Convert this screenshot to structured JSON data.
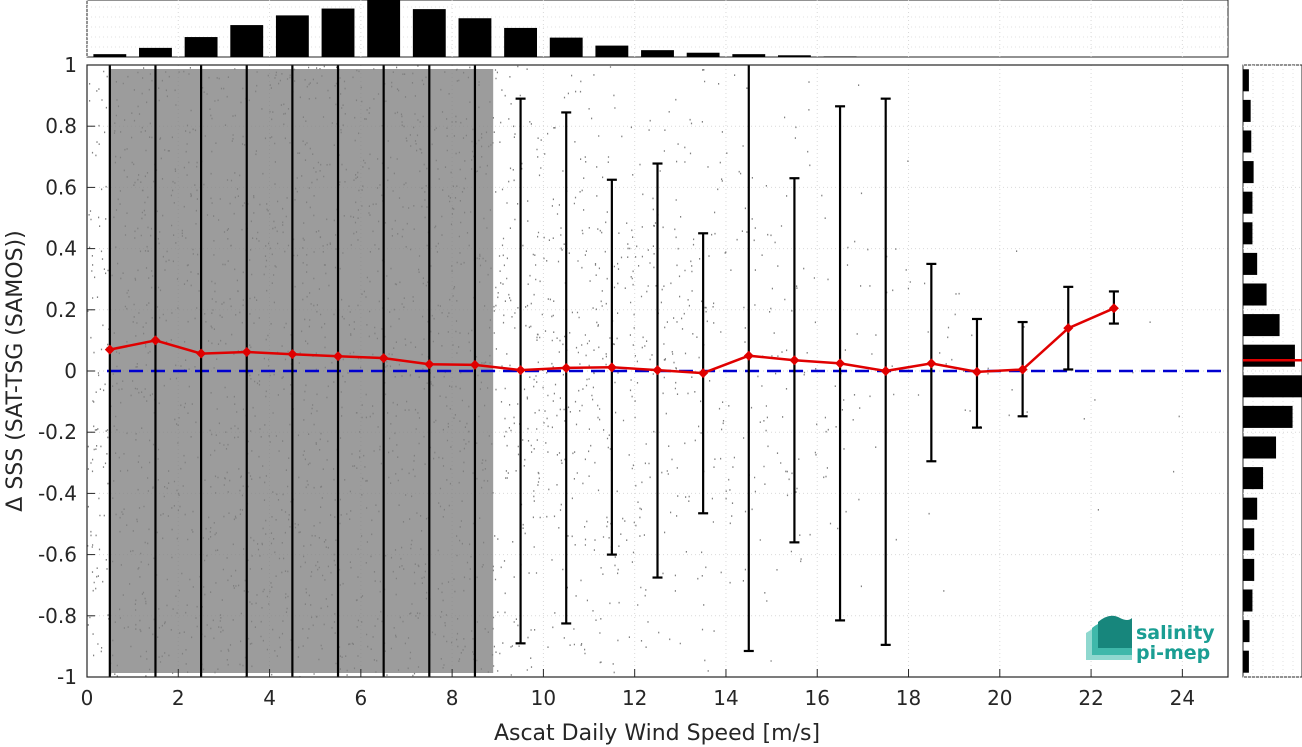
{
  "chart_data": {
    "type": "scatter",
    "xlabel": "Ascat Daily Wind Speed [m/s]",
    "ylabel": "Δ SSS (SAT-TSG (SAMOS))",
    "xlim": [
      0,
      25
    ],
    "ylim": [
      -1,
      1
    ],
    "xticks": [
      0,
      2,
      4,
      6,
      8,
      10,
      12,
      14,
      16,
      18,
      20,
      22,
      24
    ],
    "yticks": [
      -1,
      -0.8,
      -0.6,
      -0.4,
      -0.2,
      0,
      0.2,
      0.4,
      0.6,
      0.8,
      1
    ],
    "xtick_labels": [
      "0",
      "2",
      "4",
      "6",
      "8",
      "10",
      "12",
      "14",
      "16",
      "18",
      "20",
      "22",
      "24"
    ],
    "ytick_labels": [
      "-1",
      "-0.8",
      "-0.6",
      "-0.4",
      "-0.2",
      "0",
      "0.2",
      "0.4",
      "0.6",
      "0.8",
      "1"
    ],
    "grid": true,
    "reference_line": 0,
    "bin_means": {
      "x": [
        0.5,
        1.5,
        2.5,
        3.5,
        4.5,
        5.5,
        6.5,
        7.5,
        8.5,
        9.5,
        10.5,
        11.5,
        12.5,
        13.5,
        14.5,
        15.5,
        16.5,
        17.5,
        18.5,
        19.5,
        20.5,
        21.5,
        22.5
      ],
      "y": [
        0.07,
        0.1,
        0.057,
        0.062,
        0.055,
        0.048,
        0.042,
        0.022,
        0.02,
        0.003,
        0.01,
        0.012,
        0.003,
        -0.007,
        0.05,
        0.035,
        0.025,
        0.0,
        0.025,
        -0.003,
        0.005,
        0.14,
        0.205
      ]
    },
    "error_bars": {
      "upper": [
        1.05,
        1.05,
        1.05,
        1.05,
        1.05,
        1.05,
        1.05,
        1.05,
        1.05,
        0.89,
        0.845,
        0.625,
        0.678,
        0.45,
        1.05,
        0.63,
        0.865,
        0.89,
        0.35,
        0.17,
        0.16,
        0.275,
        0.26
      ],
      "lower": [
        -1.05,
        -1.05,
        -1.05,
        -1.05,
        -1.05,
        -1.05,
        -1.05,
        -1.05,
        -1.05,
        -0.89,
        -0.825,
        -0.6,
        -0.675,
        -0.465,
        -0.915,
        -0.56,
        -0.815,
        -0.895,
        -0.295,
        -0.185,
        -0.148,
        0.005,
        0.155
      ]
    },
    "x_histogram": {
      "bins": [
        0.5,
        1.5,
        2.5,
        3.5,
        4.5,
        5.5,
        6.5,
        7.5,
        8.5,
        9.5,
        10.5,
        11.5,
        12.5,
        13.5,
        14.5,
        15.5,
        16.5
      ],
      "heights": [
        0.05,
        0.16,
        0.35,
        0.56,
        0.73,
        0.85,
        1.0,
        0.84,
        0.68,
        0.51,
        0.34,
        0.2,
        0.12,
        0.075,
        0.05,
        0.03,
        0.01
      ]
    },
    "y_histogram": {
      "bins": [
        -0.95,
        -0.85,
        -0.75,
        -0.65,
        -0.55,
        -0.45,
        -0.35,
        -0.25,
        -0.15,
        -0.05,
        0.05,
        0.15,
        0.25,
        0.35,
        0.45,
        0.55,
        0.65,
        0.75,
        0.85,
        0.95
      ],
      "widths": [
        0.1,
        0.11,
        0.16,
        0.19,
        0.19,
        0.24,
        0.34,
        0.56,
        0.84,
        1.0,
        0.88,
        0.62,
        0.4,
        0.24,
        0.16,
        0.16,
        0.18,
        0.14,
        0.13,
        0.1
      ],
      "median_line": 0.035
    }
  },
  "logo": {
    "line1": "salinity",
    "line2": "pi-mep"
  },
  "colors": {
    "scatter": "#808080",
    "mean_line": "#e00000",
    "reference_line": "#0000d0",
    "bars": "#000000",
    "logo": "#1a9e93"
  }
}
